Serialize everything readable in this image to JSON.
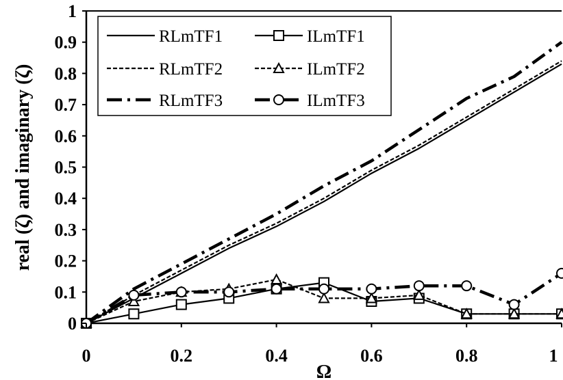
{
  "chart_data": {
    "type": "line",
    "xlabel": "Ω",
    "ylabel": "real (ζ) and imaginary (ζ)",
    "xlim": [
      0,
      1
    ],
    "ylim": [
      0,
      1
    ],
    "x_ticks": [
      "0",
      "0.2",
      "0.4",
      "0.6",
      "0.8",
      "1"
    ],
    "y_ticks": [
      "0",
      "0.1",
      "0.2",
      "0.3",
      "0.4",
      "0.5",
      "0.6",
      "0.7",
      "0.8",
      "0.9",
      "1"
    ],
    "grid": false,
    "legend_position": "top-left",
    "x": [
      0,
      0.1,
      0.2,
      0.3,
      0.4,
      0.5,
      0.6,
      0.7,
      0.8,
      0.9,
      1.0
    ],
    "series": [
      {
        "name": "RLmTF1",
        "style": "solid",
        "marker": "none",
        "values": [
          0,
          0.08,
          0.16,
          0.24,
          0.31,
          0.39,
          0.48,
          0.56,
          0.65,
          0.74,
          0.83
        ]
      },
      {
        "name": "ILmTF1",
        "style": "solid",
        "marker": "square",
        "values": [
          0,
          0.03,
          0.06,
          0.08,
          0.11,
          0.13,
          0.07,
          0.08,
          0.03,
          0.03,
          0.03
        ]
      },
      {
        "name": "RLmTF2",
        "style": "dashed",
        "marker": "none",
        "values": [
          0,
          0.09,
          0.17,
          0.25,
          0.32,
          0.4,
          0.49,
          0.57,
          0.66,
          0.75,
          0.84
        ]
      },
      {
        "name": "ILmTF2",
        "style": "dashed",
        "marker": "triangle",
        "values": [
          0,
          0.07,
          0.1,
          0.11,
          0.14,
          0.08,
          0.08,
          0.09,
          0.03,
          0.03,
          0.03
        ]
      },
      {
        "name": "RLmTF3",
        "style": "dashdot",
        "marker": "none",
        "values": [
          0,
          0.11,
          0.19,
          0.27,
          0.35,
          0.44,
          0.52,
          0.62,
          0.72,
          0.79,
          0.9
        ]
      },
      {
        "name": "ILmTF3",
        "style": "dashdot",
        "marker": "circle",
        "values": [
          0,
          0.09,
          0.1,
          0.1,
          0.11,
          0.11,
          0.11,
          0.12,
          0.12,
          0.06,
          0.16
        ]
      }
    ]
  }
}
